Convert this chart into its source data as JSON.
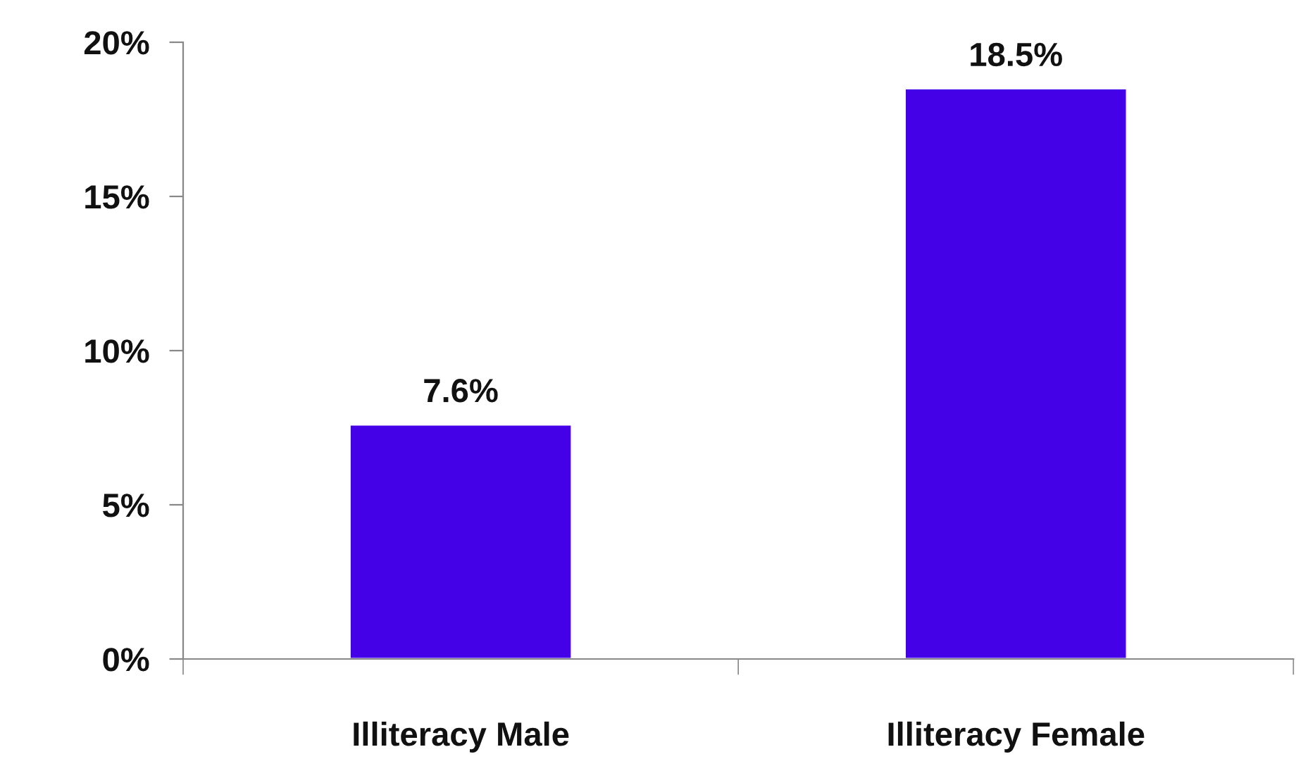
{
  "chart_data": {
    "type": "bar",
    "categories": [
      "Illiteracy Male",
      "Illiteracy Female"
    ],
    "values": [
      7.6,
      18.5
    ],
    "value_labels": [
      "7.6%",
      "18.5%"
    ],
    "color": "#4400e6",
    "ylim": [
      0,
      20
    ],
    "yticks": [
      {
        "value": 0,
        "label": "0%"
      },
      {
        "value": 5,
        "label": "5%"
      },
      {
        "value": 10,
        "label": "10%"
      },
      {
        "value": 15,
        "label": "15%"
      },
      {
        "value": 20,
        "label": "20%"
      }
    ],
    "grid": false,
    "legend": false
  }
}
